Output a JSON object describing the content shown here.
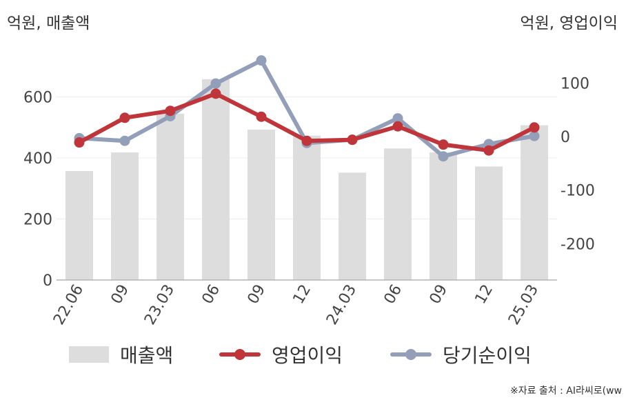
{
  "units": {
    "left": "억원, 매출액",
    "right": "억원, 영업이익"
  },
  "source": "※자료 출처 : AI라씨로(ww",
  "chart_data": {
    "type": "bar",
    "categories": [
      "22.06",
      "09",
      "23.03",
      "06",
      "09",
      "12",
      "24.03",
      "06",
      "09",
      "12",
      "25.03"
    ],
    "y_left": {
      "ticks": [
        "0",
        "200",
        "400",
        "600"
      ],
      "range": [
        0,
        700
      ]
    },
    "y_right": {
      "ticks": [
        "100",
        "0",
        "-100",
        "-200"
      ],
      "range": [
        -265,
        145
      ]
    },
    "series": [
      {
        "name": "매출액",
        "type": "bar",
        "axis": "left",
        "color": "#dddddd",
        "values": [
          357,
          418,
          545,
          658,
          493,
          473,
          352,
          431,
          418,
          372,
          507
        ]
      },
      {
        "name": "영업이익",
        "type": "line",
        "axis": "right",
        "color": "#c0353a",
        "values": [
          -11,
          35,
          48,
          80,
          37,
          -8,
          -6,
          19,
          -15,
          -26,
          17
        ]
      },
      {
        "name": "당기순이익",
        "type": "line",
        "axis": "right",
        "color": "#939fb8",
        "values": [
          -3,
          -8,
          38,
          99,
          142,
          -12,
          -6,
          34,
          -37,
          -14,
          1
        ]
      }
    ],
    "grid": true,
    "legend_position": "bottom"
  }
}
